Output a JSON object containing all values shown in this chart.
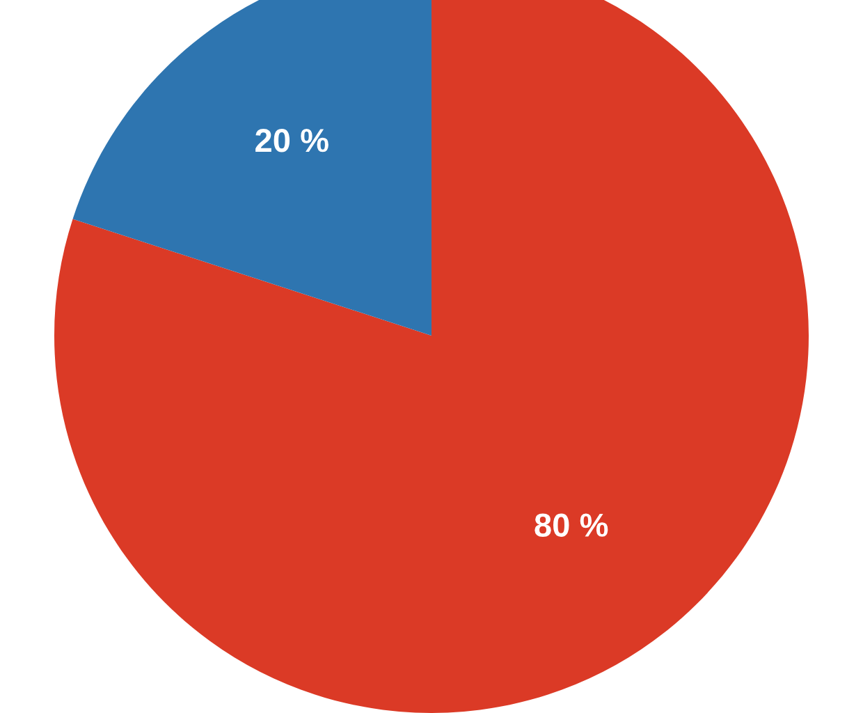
{
  "chart_data": {
    "type": "pie",
    "categories": [
      null,
      null
    ],
    "values": [
      80,
      20
    ],
    "colors": [
      "#db3a26",
      "#2e75b0"
    ],
    "value_labels": [
      "80 %",
      "20 %"
    ]
  }
}
